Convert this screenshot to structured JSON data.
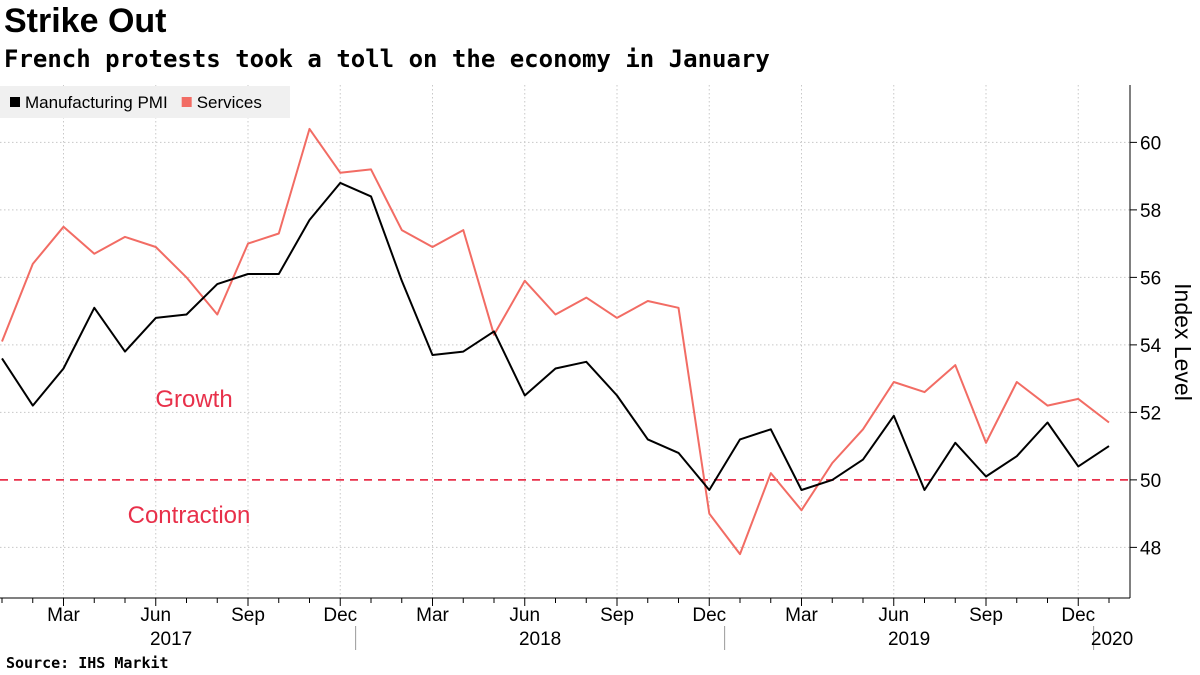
{
  "title": "Strike Out",
  "subtitle": "French protests took a toll on the economy in January",
  "source": "Source: IHS Markit",
  "chart_data": {
    "type": "line",
    "title": "Strike Out",
    "subtitle": "French protests took a toll on the economy in January",
    "ylabel": "Index Level",
    "ylim": [
      46.5,
      61.7
    ],
    "yticks": [
      48,
      50,
      52,
      54,
      56,
      58,
      60
    ],
    "x": [
      "2017-01",
      "2017-02",
      "2017-03",
      "2017-04",
      "2017-05",
      "2017-06",
      "2017-07",
      "2017-08",
      "2017-09",
      "2017-10",
      "2017-11",
      "2017-12",
      "2018-01",
      "2018-02",
      "2018-03",
      "2018-04",
      "2018-05",
      "2018-06",
      "2018-07",
      "2018-08",
      "2018-09",
      "2018-10",
      "2018-11",
      "2018-12",
      "2019-01",
      "2019-02",
      "2019-03",
      "2019-04",
      "2019-05",
      "2019-06",
      "2019-07",
      "2019-08",
      "2019-09",
      "2019-10",
      "2019-11",
      "2019-12",
      "2020-01"
    ],
    "month_ticks": [
      "Mar",
      "Jun",
      "Sep",
      "Dec",
      "Mar",
      "Jun",
      "Sep",
      "Dec",
      "Mar",
      "Jun",
      "Sep",
      "Dec"
    ],
    "year_labels": [
      "2017",
      "2018",
      "2019",
      "2020"
    ],
    "series": [
      {
        "name": "Manufacturing PMI",
        "color": "#000000",
        "values": [
          53.6,
          52.2,
          53.3,
          55.1,
          53.8,
          54.8,
          54.9,
          55.8,
          56.1,
          56.1,
          57.7,
          58.8,
          58.4,
          55.9,
          53.7,
          53.8,
          54.4,
          52.5,
          53.3,
          53.5,
          52.5,
          51.2,
          50.8,
          49.7,
          51.2,
          51.5,
          49.7,
          50.0,
          50.6,
          51.9,
          49.7,
          51.1,
          50.1,
          50.7,
          51.7,
          50.4,
          51.0
        ]
      },
      {
        "name": "Services",
        "color": "#f26c64",
        "values": [
          54.1,
          56.4,
          57.5,
          56.7,
          57.2,
          56.9,
          56.0,
          54.9,
          57.0,
          57.3,
          60.4,
          59.1,
          59.2,
          57.4,
          56.9,
          57.4,
          54.3,
          55.9,
          54.9,
          55.4,
          54.8,
          55.3,
          55.1,
          49.0,
          47.8,
          50.2,
          49.1,
          50.5,
          51.5,
          52.9,
          52.6,
          53.4,
          51.1,
          52.9,
          52.2,
          52.4,
          51.7
        ]
      }
    ],
    "reference_line": {
      "value": 50,
      "color": "#e8304a",
      "style": "dashed"
    },
    "annotations": [
      {
        "text": "Growth",
        "color": "#e8304a"
      },
      {
        "text": "Contraction",
        "color": "#e8304a"
      }
    ],
    "legend": "top-left",
    "grid": true
  }
}
